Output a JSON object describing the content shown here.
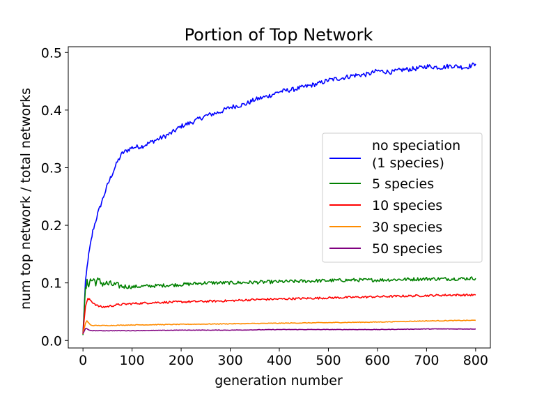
{
  "chart_data": {
    "type": "line",
    "title": "Portion of Top Network",
    "xlabel": "generation number",
    "ylabel": "num top network / total networks",
    "xlim": [
      -30,
      830
    ],
    "ylim": [
      -0.013,
      0.51
    ],
    "xticks": [
      0,
      100,
      200,
      300,
      400,
      500,
      600,
      700,
      800
    ],
    "yticks": [
      0.0,
      0.1,
      0.2,
      0.3,
      0.4,
      0.5
    ],
    "xtick_labels": [
      "0",
      "100",
      "200",
      "300",
      "400",
      "500",
      "600",
      "700",
      "800"
    ],
    "ytick_labels": [
      "0.0",
      "0.1",
      "0.2",
      "0.3",
      "0.4",
      "0.5"
    ],
    "grid": false,
    "legend_position": "center-right",
    "series": [
      {
        "name": "no speciation (1 species)",
        "legend_lines": [
          "no speciation",
          "(1 species)"
        ],
        "color": "#0000ff",
        "noise": 0.004,
        "x": [
          0,
          5,
          10,
          15,
          20,
          30,
          40,
          50,
          60,
          70,
          80,
          90,
          100,
          120,
          140,
          160,
          180,
          200,
          220,
          250,
          280,
          300,
          330,
          350,
          380,
          400,
          430,
          450,
          480,
          500,
          530,
          550,
          580,
          600,
          630,
          650,
          680,
          700,
          730,
          750,
          780,
          800
        ],
        "y": [
          0.012,
          0.1,
          0.14,
          0.165,
          0.19,
          0.22,
          0.245,
          0.27,
          0.29,
          0.31,
          0.325,
          0.33,
          0.335,
          0.337,
          0.345,
          0.352,
          0.36,
          0.372,
          0.378,
          0.39,
          0.397,
          0.405,
          0.41,
          0.418,
          0.425,
          0.432,
          0.436,
          0.44,
          0.446,
          0.452,
          0.456,
          0.46,
          0.462,
          0.468,
          0.466,
          0.47,
          0.472,
          0.476,
          0.474,
          0.477,
          0.474,
          0.48
        ]
      },
      {
        "name": "5 species",
        "color": "#008000",
        "noise": 0.003,
        "x": [
          0,
          5,
          10,
          15,
          20,
          30,
          40,
          50,
          60,
          80,
          100,
          120,
          150,
          200,
          250,
          300,
          350,
          400,
          450,
          500,
          550,
          600,
          650,
          700,
          750,
          800
        ],
        "y": [
          0.012,
          0.09,
          0.1,
          0.104,
          0.105,
          0.102,
          0.1,
          0.098,
          0.097,
          0.094,
          0.093,
          0.094,
          0.095,
          0.097,
          0.1,
          0.1,
          0.101,
          0.102,
          0.103,
          0.104,
          0.105,
          0.105,
          0.106,
          0.107,
          0.107,
          0.108
        ]
      },
      {
        "name": "10 species",
        "color": "#ff0000",
        "noise": 0.0018,
        "x": [
          0,
          5,
          10,
          15,
          20,
          30,
          40,
          50,
          70,
          100,
          150,
          200,
          250,
          300,
          350,
          400,
          450,
          500,
          550,
          600,
          650,
          700,
          750,
          800
        ],
        "y": [
          0.012,
          0.06,
          0.072,
          0.07,
          0.066,
          0.06,
          0.058,
          0.059,
          0.062,
          0.064,
          0.066,
          0.067,
          0.068,
          0.069,
          0.071,
          0.072,
          0.073,
          0.074,
          0.075,
          0.076,
          0.077,
          0.078,
          0.079,
          0.079
        ]
      },
      {
        "name": "30 species",
        "color": "#ff8c00",
        "noise": 0.0006,
        "x": [
          0,
          5,
          8,
          12,
          15,
          20,
          30,
          50,
          100,
          200,
          300,
          400,
          500,
          600,
          700,
          800
        ],
        "y": [
          0.012,
          0.03,
          0.034,
          0.03,
          0.027,
          0.026,
          0.026,
          0.026,
          0.027,
          0.028,
          0.029,
          0.03,
          0.031,
          0.032,
          0.034,
          0.035
        ]
      },
      {
        "name": "50 species",
        "color": "#800080",
        "noise": 0.0004,
        "x": [
          0,
          5,
          8,
          12,
          20,
          50,
          100,
          200,
          300,
          400,
          500,
          600,
          700,
          800
        ],
        "y": [
          0.012,
          0.021,
          0.02,
          0.018,
          0.017,
          0.017,
          0.017,
          0.018,
          0.018,
          0.019,
          0.019,
          0.019,
          0.02,
          0.02
        ]
      }
    ]
  }
}
